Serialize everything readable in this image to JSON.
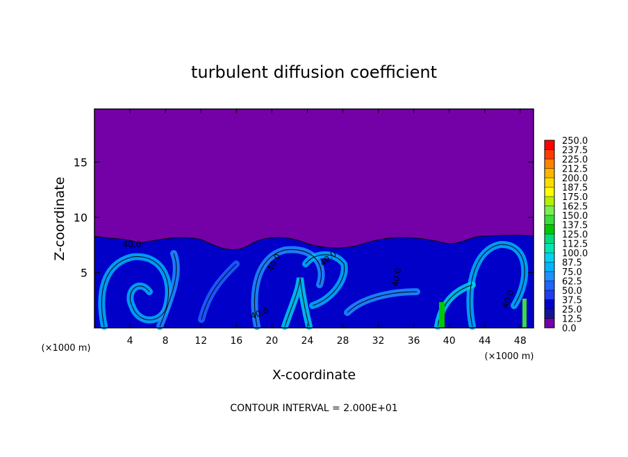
{
  "chart_data": {
    "type": "contour",
    "title": "turbulent diffusion coefficient",
    "x_label": "X-coordinate",
    "y_label": "Z-coordinate",
    "x_unit": "(×1000 m)",
    "footnote": "CONTOUR INTERVAL = 2.000E+01",
    "xlim": [
      0,
      49.5
    ],
    "ylim": [
      0,
      19.8
    ],
    "xticks": [
      4,
      8,
      12,
      16,
      20,
      24,
      28,
      32,
      36,
      40,
      44,
      48
    ],
    "yticks": [
      5,
      10,
      15
    ],
    "background_color": "#7400a8",
    "contour_labels": [
      "40.0",
      "40.0",
      "40.0",
      "40.0",
      "40.0",
      "40.0"
    ],
    "colorbar": {
      "levels": [
        {
          "value": 0,
          "label": "0.0"
        },
        12.5,
        {
          "value": 25,
          "label": "25.0"
        },
        37.5,
        {
          "value": 50,
          "label": "50.0"
        },
        62.5,
        {
          "value": 75,
          "label": "75.0"
        },
        87.5,
        {
          "value": 100,
          "label": "100.0"
        },
        112.5,
        {
          "value": 125,
          "label": "125.0"
        },
        137.5,
        {
          "value": 150,
          "label": "150.0"
        },
        162.5,
        {
          "value": 175,
          "label": "175.0"
        },
        187.5,
        {
          "value": 200,
          "label": "200.0"
        },
        212.5,
        {
          "value": 225,
          "label": "225.0"
        },
        237.5,
        {
          "value": 250,
          "label": "250.0"
        }
      ],
      "colors": [
        "#7400a8",
        "#141496",
        "#0000c8",
        "#1e3cf0",
        "#1e64ff",
        "#1e90ff",
        "#00b4ff",
        "#00d2f0",
        "#00e6b4",
        "#00dc78",
        "#00c800",
        "#3cdc3c",
        "#78f050",
        "#b4f000",
        "#ffff00",
        "#ffdc00",
        "#ffb400",
        "#ff8200",
        "#ff3c00",
        "#ff0000"
      ]
    }
  }
}
